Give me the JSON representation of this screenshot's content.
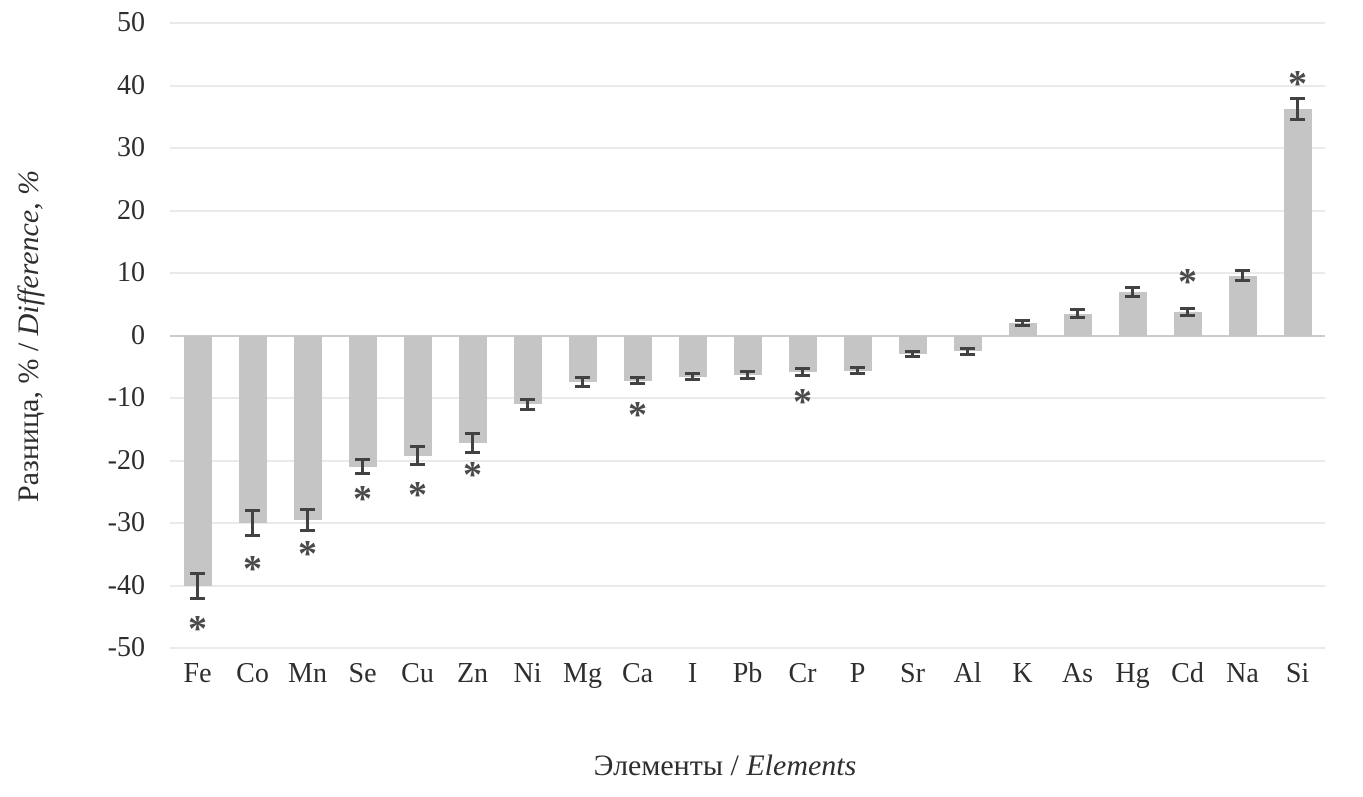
{
  "figure": {
    "background": "#ffffff",
    "text_color": "#2e2e2e"
  },
  "chart_data": {
    "type": "bar",
    "title": "",
    "xlabel": "Элементы / Elements",
    "xlabel_parts": {
      "ru": "Элементы",
      "sep": " / ",
      "en": "Elements"
    },
    "ylabel": "Разница, % / Difference, %",
    "ylabel_parts": {
      "ru": "Разница, %",
      "sep": " / ",
      "en": "Difference, %"
    },
    "ylim": [
      -50,
      50
    ],
    "yticks": [
      50,
      40,
      30,
      20,
      10,
      0,
      -10,
      -20,
      -30,
      -40,
      -50
    ],
    "grid": true,
    "legend": "none",
    "significance_marker": "*",
    "bar_color": "#c5c5c5",
    "error_bar_color": "#424242",
    "marker_color": "#4a4a4a",
    "gridline_color": "#eaeaea",
    "zero_line_color": "#cbcbcb",
    "categories": [
      "Fe",
      "Co",
      "Mn",
      "Se",
      "Cu",
      "Zn",
      "Ni",
      "Mg",
      "Ca",
      "I",
      "Pb",
      "Cr",
      "P",
      "Sr",
      "Al",
      "K",
      "As",
      "Hg",
      "Cd",
      "Na",
      "Si"
    ],
    "series": [
      {
        "name": "Difference, %",
        "values": [
          -40,
          -30,
          -29.5,
          -21,
          -19.2,
          -17.2,
          -11,
          -7.4,
          -7.2,
          -6.6,
          -6.3,
          -5.8,
          -5.6,
          -2.9,
          -2.5,
          2,
          3.5,
          7,
          3.8,
          9.6,
          36.3
        ],
        "error": [
          2.0,
          2.0,
          1.7,
          1.1,
          1.4,
          1.5,
          0.8,
          0.7,
          0.5,
          0.5,
          0.5,
          0.6,
          0.5,
          0.4,
          0.5,
          0.4,
          0.6,
          0.7,
          0.6,
          0.8,
          1.7
        ],
        "significance_marker_y": [
          -46,
          -36.4,
          -34,
          -25.2,
          -24.6,
          -21.3,
          null,
          null,
          -11.7,
          null,
          null,
          -9.6,
          null,
          null,
          null,
          null,
          null,
          null,
          9.5,
          null,
          41.2
        ]
      }
    ]
  }
}
